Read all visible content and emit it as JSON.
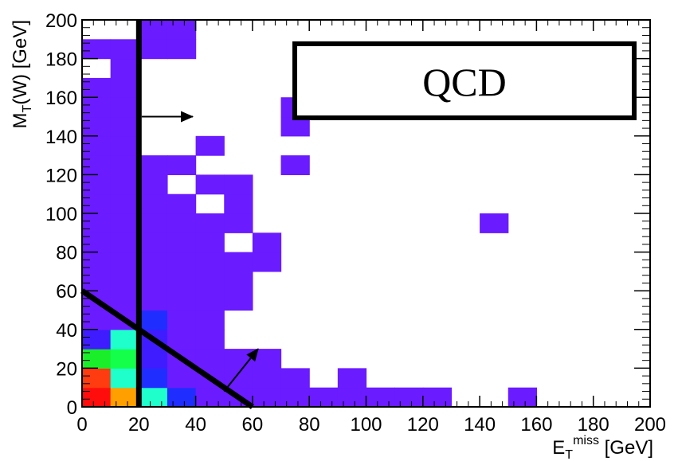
{
  "chart_data": {
    "type": "heatmap",
    "title": "",
    "xlabel": {
      "main": "E",
      "sub": "T",
      "sup": "miss",
      "unit": " [GeV]"
    },
    "ylabel": {
      "main": "M",
      "sub": "T",
      "rest": "(W) [GeV]"
    },
    "xlim": [
      0,
      200
    ],
    "ylim": [
      0,
      200
    ],
    "xticks": [
      0,
      20,
      40,
      60,
      80,
      100,
      120,
      140,
      160,
      180,
      200
    ],
    "yticks": [
      0,
      20,
      40,
      60,
      80,
      100,
      120,
      140,
      160,
      180,
      200
    ],
    "bin_width": 10,
    "legend_box_text": "QCD",
    "colors": {
      "violet": "#6a1bff",
      "indigo": "#3f1cff",
      "blue": "#1f2dff",
      "cyan": "#1fffcc",
      "green": "#14ff4a",
      "lime": "#1aee2a",
      "orange": "#ffa000",
      "red": "#ff0c0c",
      "redorange": "#ff3c10"
    },
    "cells": [
      {
        "x": 0,
        "y": 0,
        "c": "red"
      },
      {
        "x": 10,
        "y": 0,
        "c": "orange"
      },
      {
        "x": 20,
        "y": 0,
        "c": "cyan"
      },
      {
        "x": 30,
        "y": 0,
        "c": "blue"
      },
      {
        "x": 40,
        "y": 0,
        "c": "violet"
      },
      {
        "x": 50,
        "y": 0,
        "c": "violet"
      },
      {
        "x": 60,
        "y": 0,
        "c": "violet"
      },
      {
        "x": 70,
        "y": 0,
        "c": "violet"
      },
      {
        "x": 80,
        "y": 0,
        "c": "violet"
      },
      {
        "x": 90,
        "y": 0,
        "c": "violet"
      },
      {
        "x": 100,
        "y": 0,
        "c": "violet"
      },
      {
        "x": 110,
        "y": 0,
        "c": "violet"
      },
      {
        "x": 120,
        "y": 0,
        "c": "violet"
      },
      {
        "x": 150,
        "y": 0,
        "c": "violet"
      },
      {
        "x": 0,
        "y": 10,
        "c": "redorange"
      },
      {
        "x": 10,
        "y": 10,
        "c": "cyan"
      },
      {
        "x": 20,
        "y": 10,
        "c": "blue"
      },
      {
        "x": 30,
        "y": 10,
        "c": "violet"
      },
      {
        "x": 40,
        "y": 10,
        "c": "violet"
      },
      {
        "x": 50,
        "y": 10,
        "c": "violet"
      },
      {
        "x": 60,
        "y": 10,
        "c": "violet"
      },
      {
        "x": 70,
        "y": 10,
        "c": "violet"
      },
      {
        "x": 90,
        "y": 10,
        "c": "violet"
      },
      {
        "x": 0,
        "y": 20,
        "c": "lime"
      },
      {
        "x": 10,
        "y": 20,
        "c": "green"
      },
      {
        "x": 20,
        "y": 20,
        "c": "indigo"
      },
      {
        "x": 30,
        "y": 20,
        "c": "violet"
      },
      {
        "x": 40,
        "y": 20,
        "c": "violet"
      },
      {
        "x": 50,
        "y": 20,
        "c": "violet"
      },
      {
        "x": 60,
        "y": 20,
        "c": "violet"
      },
      {
        "x": 0,
        "y": 30,
        "c": "indigo"
      },
      {
        "x": 10,
        "y": 30,
        "c": "cyan"
      },
      {
        "x": 20,
        "y": 30,
        "c": "indigo"
      },
      {
        "x": 30,
        "y": 30,
        "c": "violet"
      },
      {
        "x": 40,
        "y": 30,
        "c": "violet"
      },
      {
        "x": 0,
        "y": 40,
        "c": "violet"
      },
      {
        "x": 10,
        "y": 40,
        "c": "violet"
      },
      {
        "x": 20,
        "y": 40,
        "c": "blue"
      },
      {
        "x": 30,
        "y": 40,
        "c": "violet"
      },
      {
        "x": 40,
        "y": 40,
        "c": "violet"
      },
      {
        "x": 0,
        "y": 50,
        "c": "violet"
      },
      {
        "x": 10,
        "y": 50,
        "c": "violet"
      },
      {
        "x": 20,
        "y": 50,
        "c": "violet"
      },
      {
        "x": 30,
        "y": 50,
        "c": "violet"
      },
      {
        "x": 40,
        "y": 50,
        "c": "violet"
      },
      {
        "x": 50,
        "y": 50,
        "c": "violet"
      },
      {
        "x": 0,
        "y": 60,
        "c": "violet"
      },
      {
        "x": 10,
        "y": 60,
        "c": "violet"
      },
      {
        "x": 20,
        "y": 60,
        "c": "violet"
      },
      {
        "x": 30,
        "y": 60,
        "c": "violet"
      },
      {
        "x": 40,
        "y": 60,
        "c": "violet"
      },
      {
        "x": 50,
        "y": 60,
        "c": "violet"
      },
      {
        "x": 0,
        "y": 70,
        "c": "violet"
      },
      {
        "x": 10,
        "y": 70,
        "c": "violet"
      },
      {
        "x": 20,
        "y": 70,
        "c": "violet"
      },
      {
        "x": 30,
        "y": 70,
        "c": "violet"
      },
      {
        "x": 40,
        "y": 70,
        "c": "violet"
      },
      {
        "x": 50,
        "y": 70,
        "c": "violet"
      },
      {
        "x": 60,
        "y": 70,
        "c": "violet"
      },
      {
        "x": 0,
        "y": 80,
        "c": "violet"
      },
      {
        "x": 10,
        "y": 80,
        "c": "violet"
      },
      {
        "x": 20,
        "y": 80,
        "c": "violet"
      },
      {
        "x": 30,
        "y": 80,
        "c": "violet"
      },
      {
        "x": 40,
        "y": 80,
        "c": "violet"
      },
      {
        "x": 60,
        "y": 80,
        "c": "violet"
      },
      {
        "x": 0,
        "y": 90,
        "c": "violet"
      },
      {
        "x": 10,
        "y": 90,
        "c": "violet"
      },
      {
        "x": 20,
        "y": 90,
        "c": "violet"
      },
      {
        "x": 30,
        "y": 90,
        "c": "violet"
      },
      {
        "x": 40,
        "y": 90,
        "c": "violet"
      },
      {
        "x": 50,
        "y": 90,
        "c": "violet"
      },
      {
        "x": 140,
        "y": 90,
        "c": "violet"
      },
      {
        "x": 0,
        "y": 100,
        "c": "violet"
      },
      {
        "x": 10,
        "y": 100,
        "c": "violet"
      },
      {
        "x": 20,
        "y": 100,
        "c": "violet"
      },
      {
        "x": 30,
        "y": 100,
        "c": "violet"
      },
      {
        "x": 50,
        "y": 100,
        "c": "violet"
      },
      {
        "x": 0,
        "y": 110,
        "c": "violet"
      },
      {
        "x": 10,
        "y": 110,
        "c": "violet"
      },
      {
        "x": 20,
        "y": 110,
        "c": "violet"
      },
      {
        "x": 40,
        "y": 110,
        "c": "violet"
      },
      {
        "x": 50,
        "y": 110,
        "c": "violet"
      },
      {
        "x": 0,
        "y": 120,
        "c": "violet"
      },
      {
        "x": 10,
        "y": 120,
        "c": "violet"
      },
      {
        "x": 20,
        "y": 120,
        "c": "violet"
      },
      {
        "x": 30,
        "y": 120,
        "c": "violet"
      },
      {
        "x": 70,
        "y": 120,
        "c": "violet"
      },
      {
        "x": 0,
        "y": 130,
        "c": "violet"
      },
      {
        "x": 10,
        "y": 130,
        "c": "violet"
      },
      {
        "x": 40,
        "y": 130,
        "c": "violet"
      },
      {
        "x": 0,
        "y": 140,
        "c": "violet"
      },
      {
        "x": 10,
        "y": 140,
        "c": "violet"
      },
      {
        "x": 70,
        "y": 140,
        "c": "violet"
      },
      {
        "x": 0,
        "y": 150,
        "c": "violet"
      },
      {
        "x": 10,
        "y": 150,
        "c": "violet"
      },
      {
        "x": 70,
        "y": 150,
        "c": "violet"
      },
      {
        "x": 0,
        "y": 160,
        "c": "violet"
      },
      {
        "x": 10,
        "y": 160,
        "c": "violet"
      },
      {
        "x": 10,
        "y": 170,
        "c": "violet"
      },
      {
        "x": 0,
        "y": 180,
        "c": "violet"
      },
      {
        "x": 10,
        "y": 180,
        "c": "violet"
      },
      {
        "x": 20,
        "y": 180,
        "c": "violet"
      },
      {
        "x": 30,
        "y": 180,
        "c": "violet"
      },
      {
        "x": 20,
        "y": 190,
        "c": "violet"
      },
      {
        "x": 30,
        "y": 190,
        "c": "violet"
      }
    ],
    "annotations": {
      "vertical_cut": {
        "x": 20,
        "y_from": 0,
        "y_to": 200
      },
      "diagonal_cut": {
        "from": [
          0,
          60
        ],
        "to": [
          60,
          0
        ]
      },
      "arrows": [
        {
          "from": [
            21,
            150
          ],
          "to": [
            39,
            150
          ]
        },
        {
          "from": [
            50,
            8
          ],
          "to": [
            62,
            30
          ]
        }
      ]
    }
  }
}
